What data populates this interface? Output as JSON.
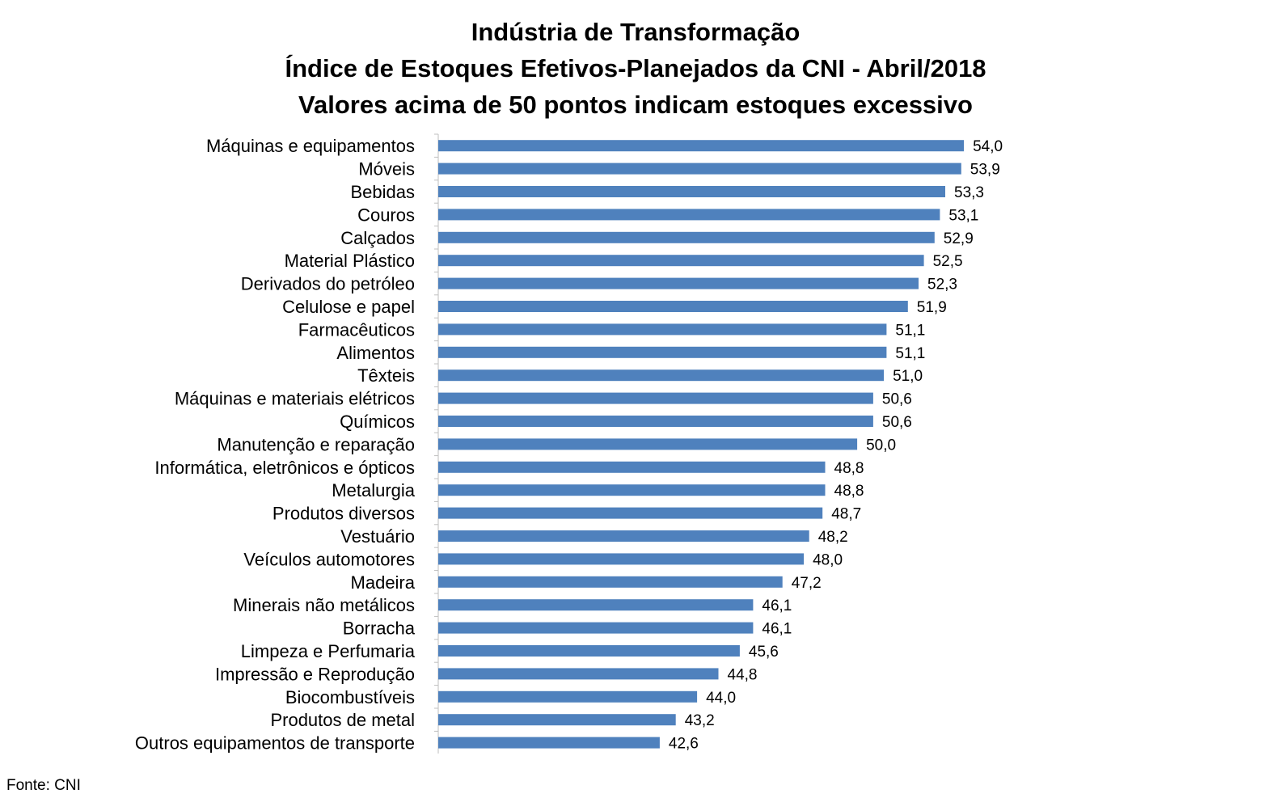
{
  "chart_data": {
    "type": "bar",
    "orientation": "horizontal",
    "title": [
      "Indústria de Transformação",
      "Índice de Estoques Efetivos-Planejados da CNI - Abril/2018",
      "Valores acima de 50 pontos indicam estoques excessivo"
    ],
    "categories": [
      "Máquinas e equipamentos",
      "Móveis",
      "Bebidas",
      "Couros",
      "Calçados",
      "Material Plástico",
      "Derivados do petróleo",
      "Celulose e papel",
      "Farmacêuticos",
      "Alimentos",
      "Têxteis",
      "Máquinas e materiais elétricos",
      "Químicos",
      "Manutenção e reparação",
      "Informática, eletrônicos e ópticos",
      "Metalurgia",
      "Produtos diversos",
      "Vestuário",
      "Veículos automotores",
      "Madeira",
      "Minerais não metálicos",
      "Borracha",
      "Limpeza e Perfumaria",
      "Impressão e Reprodução",
      "Biocombustíveis",
      "Produtos de metal",
      "Outros equipamentos de transporte"
    ],
    "values": [
      54.0,
      53.9,
      53.3,
      53.1,
      52.9,
      52.5,
      52.3,
      51.9,
      51.1,
      51.1,
      51.0,
      50.6,
      50.6,
      50.0,
      48.8,
      48.8,
      48.7,
      48.2,
      48.0,
      47.2,
      46.1,
      46.1,
      45.6,
      44.8,
      44.0,
      43.2,
      42.6
    ],
    "value_labels": [
      "54,0",
      "53,9",
      "53,3",
      "53,1",
      "52,9",
      "52,5",
      "52,3",
      "51,9",
      "51,1",
      "51,1",
      "51,0",
      "50,6",
      "50,6",
      "50,0",
      "48,8",
      "48,8",
      "48,7",
      "48,2",
      "48,0",
      "47,2",
      "46,1",
      "46,1",
      "45,6",
      "44,8",
      "44,0",
      "43,2",
      "42,6"
    ],
    "xlim": [
      34.3,
      56.6
    ],
    "grid": false,
    "bar_color": "#4f81bd",
    "source": "Fonte: CNI"
  }
}
